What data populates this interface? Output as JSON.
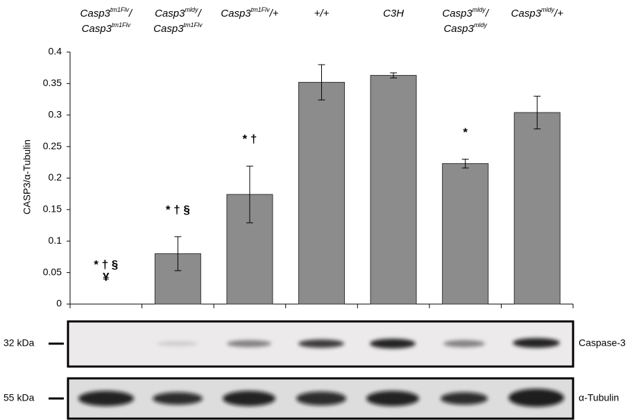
{
  "chart_data": {
    "type": "bar",
    "ylabel": "CASP3/α-Tubulin",
    "categories": [
      [
        [
          "Casp3",
          "tm1Flv",
          "/"
        ],
        [
          "Casp3",
          "tm1Flv"
        ]
      ],
      [
        [
          "Casp3",
          "mldy",
          "/"
        ],
        [
          "Casp3",
          "tm1Flv"
        ]
      ],
      [
        [
          "Casp3",
          "tm1Flv",
          "/+"
        ]
      ],
      [
        [
          "+/+"
        ]
      ],
      [
        [
          "C3H"
        ]
      ],
      [
        [
          "Casp3",
          "mldy",
          "/"
        ],
        [
          "Casp3",
          "mldy"
        ]
      ],
      [
        [
          "Casp3",
          "mldy",
          "/+"
        ]
      ]
    ],
    "values": [
      0,
      0.08,
      0.174,
      0.352,
      0.363,
      0.223,
      0.304
    ],
    "errors": [
      null,
      0.027,
      0.045,
      0.028,
      0.004,
      0.007,
      0.026
    ],
    "annotations": [
      [
        "* † §",
        "¥"
      ],
      [
        "* † §"
      ],
      [
        "* †"
      ],
      null,
      null,
      [
        "*"
      ],
      null
    ],
    "color": "#8c8c8c",
    "ylim": [
      0,
      0.4
    ],
    "yticks": [
      0,
      0.05,
      0.1,
      0.15,
      0.2,
      0.25,
      0.3,
      0.35,
      0.4
    ],
    "blots": [
      {
        "size": "32 kDa",
        "protein": "Caspase-3"
      },
      {
        "size": "55 kDa",
        "protein": "α-Tubulin"
      }
    ]
  }
}
